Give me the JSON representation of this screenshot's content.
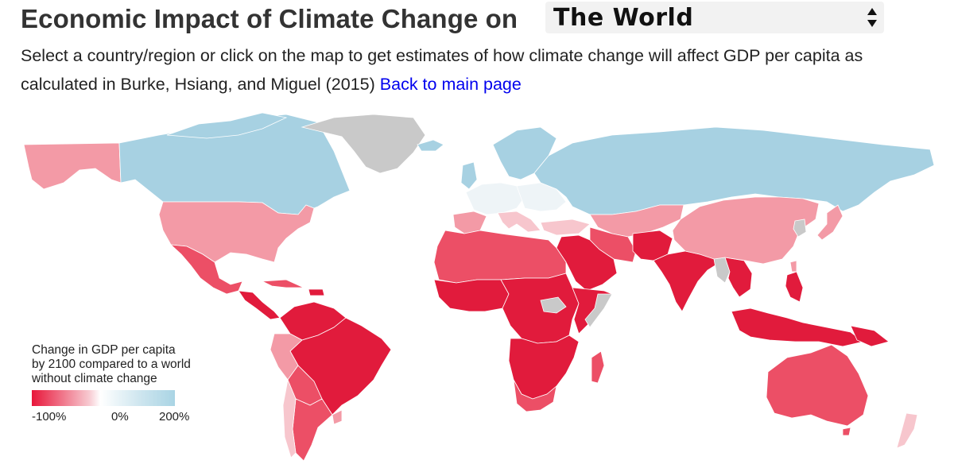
{
  "title": "Economic Impact of Climate Change on",
  "region_select": {
    "selected": "The World"
  },
  "subtitle": {
    "text": "Select a country/region or click on the map to get estimates of how climate change will affect GDP per capita as calculated in Burke, Hsiang, and Miguel (2015)",
    "link_label": "Back to main page"
  },
  "legend": {
    "title_lines": [
      "Change in GDP per capita",
      "by 2100 compared to a world",
      "without climate change"
    ],
    "ticks": [
      "-100%",
      "0%",
      "200%"
    ]
  },
  "colors": {
    "strong_loss": "#e11b3c",
    "loss": "#ec4f66",
    "moderate_loss": "#f39aa6",
    "slight_loss": "#f7c6cd",
    "neutral": "#eef4f7",
    "gain": "#a7d1e2",
    "no_data": "#c9c9c9"
  }
}
